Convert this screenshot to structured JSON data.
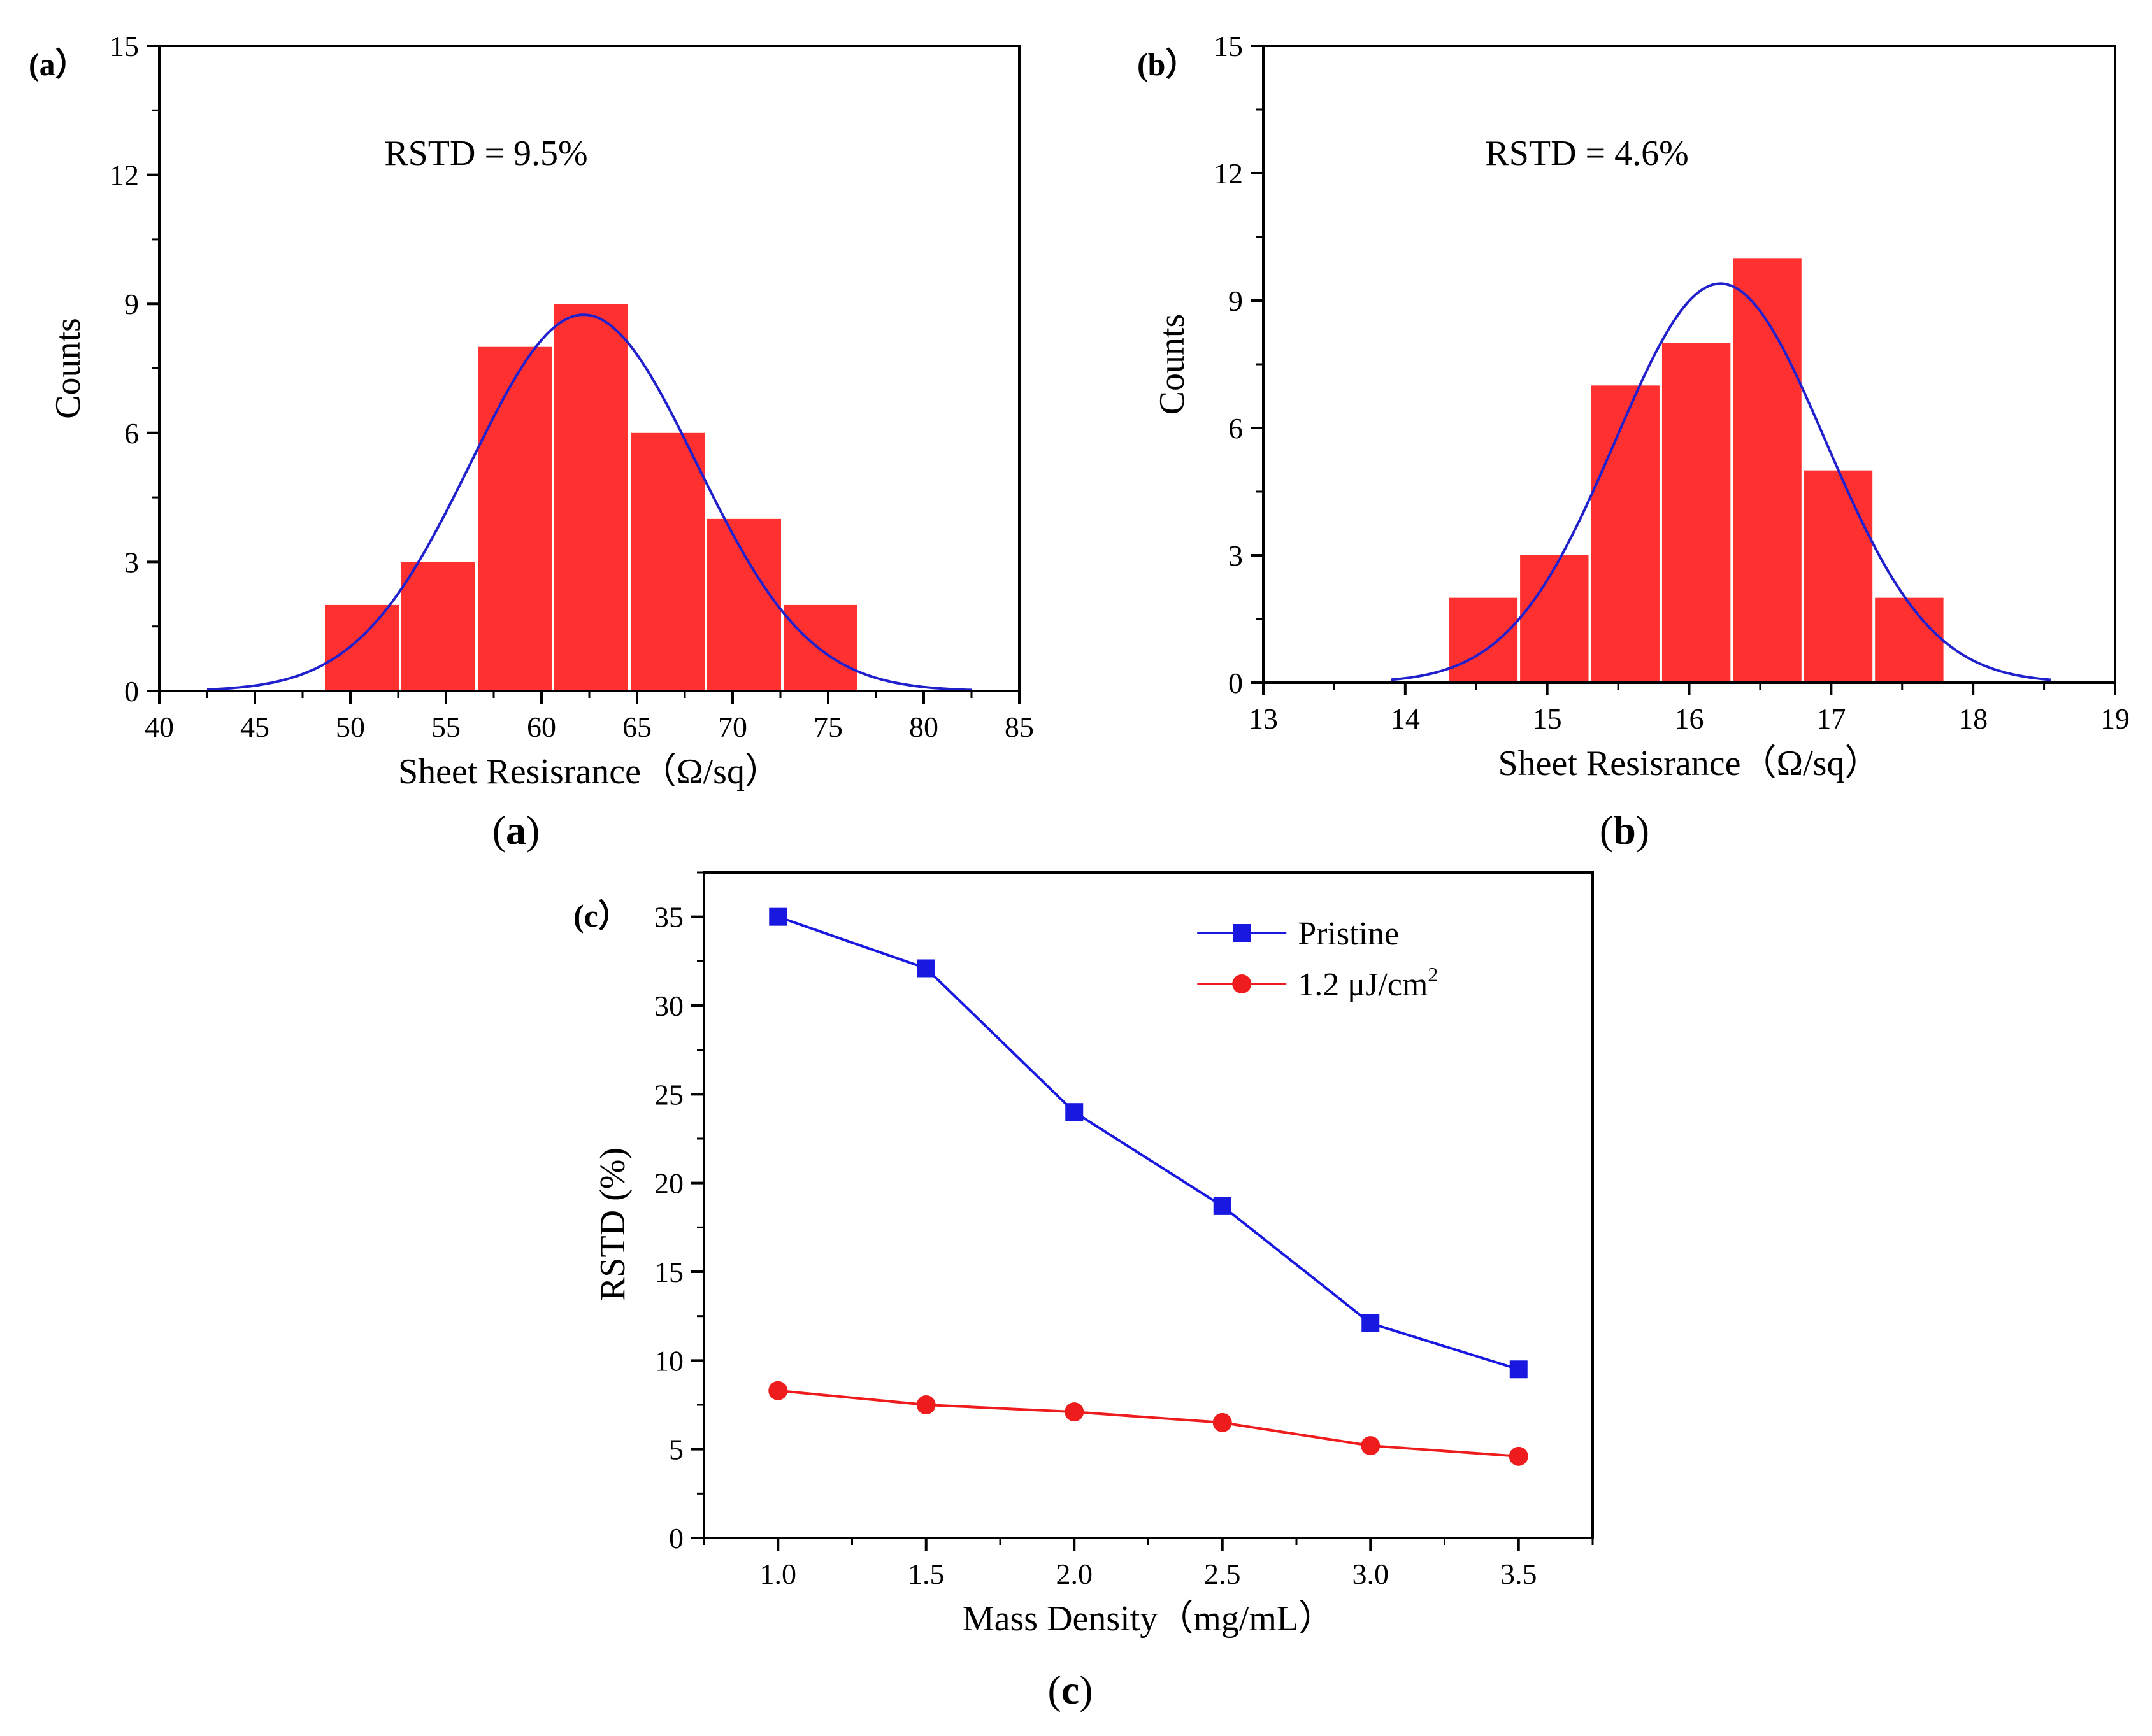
{
  "chart_data": [
    {
      "id": "a",
      "type": "bar",
      "subtype": "histogram-with-normal-fit",
      "panel_tag": "(a）",
      "caption_letter": "a",
      "annotation": "RSTD = 9.5%",
      "xlabel": "Sheet Resisrance（Ω/sq）",
      "ylabel": "Counts",
      "xlim": [
        40,
        85
      ],
      "ylim": [
        0,
        15
      ],
      "xticks": [
        40,
        45,
        50,
        55,
        60,
        65,
        70,
        75,
        80,
        85
      ],
      "yticks": [
        0,
        3,
        6,
        9,
        12,
        15
      ],
      "bins": [
        {
          "start": 48.6,
          "end": 52.6,
          "count": 2
        },
        {
          "start": 52.6,
          "end": 56.6,
          "count": 3
        },
        {
          "start": 56.6,
          "end": 60.6,
          "count": 8
        },
        {
          "start": 60.6,
          "end": 64.6,
          "count": 9
        },
        {
          "start": 64.6,
          "end": 68.6,
          "count": 6
        },
        {
          "start": 68.6,
          "end": 72.6,
          "count": 4
        },
        {
          "start": 72.6,
          "end": 76.6,
          "count": 2
        }
      ],
      "fit": {
        "mean": 62.2,
        "sigma": 5.9,
        "peak": 8.75,
        "x_range": [
          42.5,
          82.5
        ]
      },
      "colors": {
        "bar": "#ff3030",
        "fit": "#2020cc"
      }
    },
    {
      "id": "b",
      "type": "bar",
      "subtype": "histogram-with-normal-fit",
      "panel_tag": "(b）",
      "caption_letter": "b",
      "annotation": "RSTD = 4.6%",
      "xlabel": "Sheet Resisrance（Ω/sq）",
      "ylabel": "Counts",
      "xlim": [
        13,
        19
      ],
      "ylim": [
        0,
        15
      ],
      "xticks": [
        13,
        14,
        15,
        16,
        17,
        18,
        19
      ],
      "yticks": [
        0,
        3,
        6,
        9,
        12,
        15
      ],
      "bins": [
        {
          "start": 14.3,
          "end": 14.8,
          "count": 2
        },
        {
          "start": 14.8,
          "end": 15.3,
          "count": 3
        },
        {
          "start": 15.3,
          "end": 15.8,
          "count": 7
        },
        {
          "start": 15.8,
          "end": 16.3,
          "count": 8
        },
        {
          "start": 16.3,
          "end": 16.8,
          "count": 10
        },
        {
          "start": 16.8,
          "end": 17.3,
          "count": 5
        },
        {
          "start": 17.3,
          "end": 17.8,
          "count": 2
        }
      ],
      "fit": {
        "mean": 16.22,
        "sigma": 0.74,
        "peak": 9.4,
        "x_range": [
          13.9,
          18.55
        ]
      },
      "colors": {
        "bar": "#ff3030",
        "fit": "#2020cc"
      }
    },
    {
      "id": "c",
      "type": "line",
      "panel_tag": "(c）",
      "caption_letter": "c",
      "xlabel": "Mass Density（mg/mL）",
      "ylabel": "RSTD (%)",
      "xlim": [
        0.75,
        3.75
      ],
      "ylim": [
        0,
        37.5
      ],
      "xticks": [
        1.0,
        1.5,
        2.0,
        2.5,
        3.0,
        3.5
      ],
      "xtick_labels": [
        "1.0",
        "1.5",
        "2.0",
        "2.5",
        "3.0",
        "3.5"
      ],
      "yticks": [
        0,
        5,
        10,
        15,
        20,
        25,
        30,
        35
      ],
      "x": [
        1.0,
        1.5,
        2.0,
        2.5,
        3.0,
        3.5
      ],
      "series": [
        {
          "name": "Pristine",
          "legend_main": "Pristine",
          "legend_sup": "",
          "marker": "square",
          "color": "#1818e0",
          "values": [
            35.0,
            32.1,
            24.0,
            18.7,
            12.1,
            9.5
          ]
        },
        {
          "name": "1.2 μJ/cm2",
          "legend_main": "1.2 μJ/cm",
          "legend_sup": "2",
          "marker": "circle",
          "color": "#ee1c1c",
          "values": [
            8.3,
            7.5,
            7.1,
            6.5,
            5.2,
            4.6
          ]
        }
      ],
      "legend_position": "top-right"
    }
  ]
}
